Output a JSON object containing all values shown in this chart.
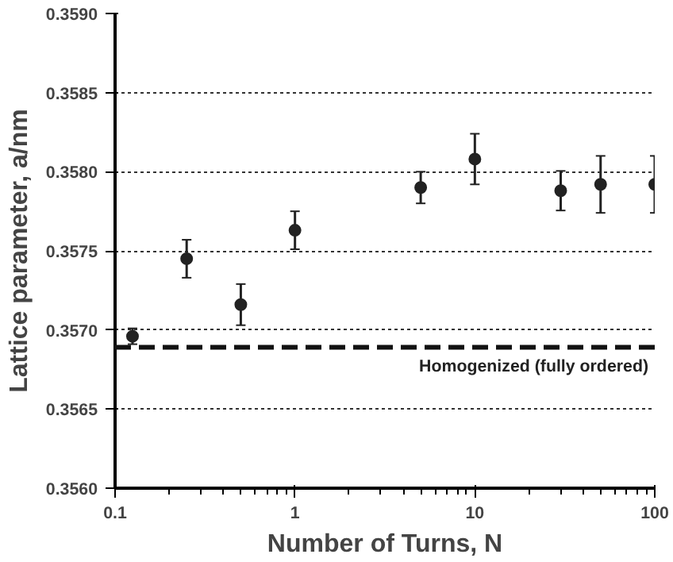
{
  "chart_data": {
    "type": "scatter",
    "xlabel": "Number of Turns, N",
    "ylabel": "Lattice parameter, a/nm",
    "x": [
      0.125,
      0.25,
      0.5,
      1,
      5,
      10,
      30,
      50,
      100
    ],
    "series": [
      {
        "color": "#222222",
        "values": [
          0.35696,
          0.35745,
          0.35716,
          0.35763,
          0.3579,
          0.35808,
          0.35788,
          0.35792,
          0.35792
        ],
        "errors": [
          5e-05,
          0.00012,
          0.00013,
          0.00012,
          0.0001,
          0.00016,
          0.000125,
          0.00018,
          0.00018
        ]
      }
    ],
    "log": "x",
    "xlim": [
      0.1,
      100
    ],
    "xticks": [
      0.1,
      1,
      10,
      100
    ],
    "ylim": [
      0.356,
      0.359
    ],
    "yticks": [
      {
        "value": 0.356,
        "label": "0.3560"
      },
      {
        "value": 0.3565,
        "label": "0.3565"
      },
      {
        "value": 0.357,
        "label": "0.3570"
      },
      {
        "value": 0.3575,
        "label": "0.3575"
      },
      {
        "value": 0.358,
        "label": "0.3580"
      },
      {
        "value": 0.3585,
        "label": "0.3585"
      },
      {
        "value": 0.359,
        "label": "0.3590"
      }
    ],
    "grid": "y",
    "marker": "circle",
    "ref_lines": [
      {
        "axis": "y",
        "value": 0.35689,
        "label": "Homogenized (fully ordered)",
        "color": "#111111",
        "line_style": "dashed"
      }
    ]
  }
}
